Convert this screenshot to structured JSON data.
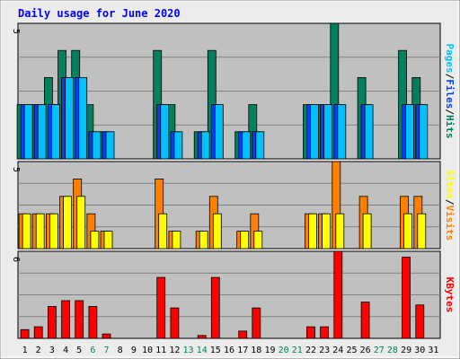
{
  "title": "Daily usage for June 2020",
  "colors": {
    "background": "#ececec",
    "panel": "#c0c0c0",
    "grid": "#808080",
    "title": "#0000ff",
    "hits": "#00805c",
    "files": "#0040ff",
    "pages": "#00c0ff",
    "visits": "#ff8000",
    "sites": "#ffff00",
    "kbytes": "#ff0000",
    "weekend": "#00805c",
    "weekday": "#000000"
  },
  "chart_data": {
    "type": "bar",
    "categories": [
      "1",
      "2",
      "3",
      "4",
      "5",
      "6",
      "7",
      "8",
      "9",
      "10",
      "11",
      "12",
      "13",
      "14",
      "15",
      "16",
      "17",
      "18",
      "19",
      "20",
      "21",
      "22",
      "23",
      "24",
      "25",
      "26",
      "27",
      "28",
      "29",
      "30",
      "31"
    ],
    "weekend_days": [
      6,
      7,
      13,
      14,
      20,
      21,
      27,
      28
    ],
    "panels": [
      {
        "id": "top",
        "y_max_label": "5",
        "ylim": [
          0,
          5
        ],
        "side_labels": [
          "Pages",
          "/",
          "Files",
          "/",
          "Hits"
        ],
        "series": [
          {
            "name": "Hits",
            "color_key": "hits",
            "values": [
              2,
              2,
              3,
              4,
              4,
              2,
              1,
              0,
              0,
              0,
              4,
              2,
              0,
              1,
              4,
              0,
              1,
              2,
              0,
              0,
              0,
              2,
              2,
              5,
              0,
              3,
              0,
              0,
              4,
              3,
              0
            ]
          },
          {
            "name": "Files",
            "color_key": "files",
            "values": [
              2,
              2,
              2,
              3,
              3,
              1,
              1,
              0,
              0,
              0,
              2,
              1,
              0,
              1,
              2,
              0,
              1,
              1,
              0,
              0,
              0,
              2,
              2,
              2,
              0,
              2,
              0,
              0,
              2,
              2,
              0
            ]
          },
          {
            "name": "Pages",
            "color_key": "pages",
            "values": [
              2,
              2,
              2,
              3,
              3,
              1,
              1,
              0,
              0,
              0,
              2,
              1,
              0,
              1,
              2,
              0,
              1,
              1,
              0,
              0,
              0,
              2,
              2,
              2,
              0,
              2,
              0,
              0,
              2,
              2,
              0
            ]
          }
        ]
      },
      {
        "id": "middle",
        "y_max_label": "5",
        "ylim": [
          0,
          5
        ],
        "side_labels": [
          "Sites",
          "/",
          "Visits"
        ],
        "series": [
          {
            "name": "Visits",
            "color_key": "visits",
            "values": [
              2,
              2,
              2,
              3,
              4,
              2,
              1,
              0,
              0,
              0,
              4,
              1,
              0,
              1,
              3,
              0,
              1,
              2,
              0,
              0,
              0,
              2,
              2,
              5,
              0,
              3,
              0,
              0,
              3,
              3,
              0
            ]
          },
          {
            "name": "Sites",
            "color_key": "sites",
            "values": [
              2,
              2,
              2,
              3,
              3,
              1,
              1,
              0,
              0,
              0,
              2,
              1,
              0,
              1,
              2,
              0,
              1,
              1,
              0,
              0,
              0,
              2,
              2,
              2,
              0,
              2,
              0,
              0,
              2,
              2,
              0
            ]
          }
        ]
      },
      {
        "id": "bottom",
        "y_max_label": "6",
        "ylim": [
          0,
          6
        ],
        "side_labels": [
          "KBytes"
        ],
        "series": [
          {
            "name": "KBytes",
            "color_key": "kbytes",
            "values": [
              0.6,
              0.8,
              2.2,
              2.6,
              2.6,
              2.2,
              0.3,
              0,
              0,
              0,
              4.2,
              2.1,
              0,
              0.2,
              4.2,
              0,
              0.5,
              2.1,
              0,
              0,
              0,
              0.8,
              0.8,
              6,
              0,
              2.5,
              0,
              0,
              5.6,
              2.3,
              0
            ]
          }
        ]
      }
    ]
  }
}
